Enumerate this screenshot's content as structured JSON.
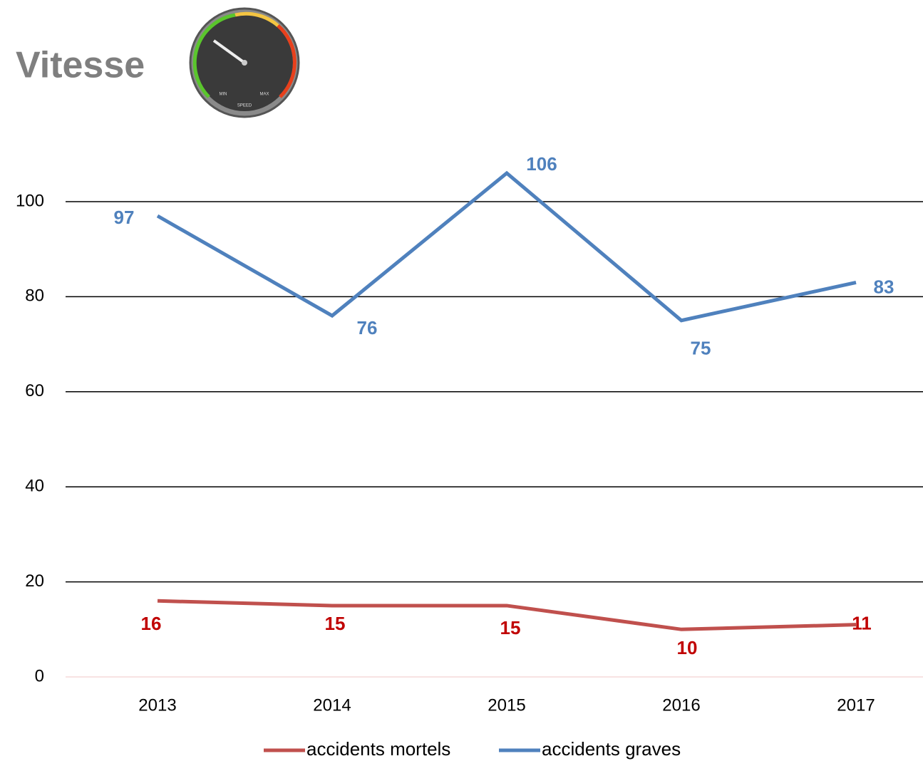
{
  "chart_data": {
    "type": "line",
    "title": "Vitesse",
    "gauge": {
      "min": "MIN",
      "max": "MAX",
      "label": "SPEED"
    },
    "categories": [
      "2013",
      "2014",
      "2015",
      "2016",
      "2017"
    ],
    "series": [
      {
        "name": "accidents mortels",
        "color": "#c0504d",
        "label_color": "#c00000",
        "values": [
          16,
          15,
          15,
          10,
          11
        ]
      },
      {
        "name": "accidents graves",
        "color": "#4f81bd",
        "label_color": "#4f81bd",
        "values": [
          97,
          76,
          106,
          75,
          83
        ]
      }
    ],
    "ylim": [
      0,
      110
    ],
    "yticks": [
      0,
      20,
      40,
      60,
      80,
      100
    ],
    "grid": true,
    "legend": "bottom"
  }
}
